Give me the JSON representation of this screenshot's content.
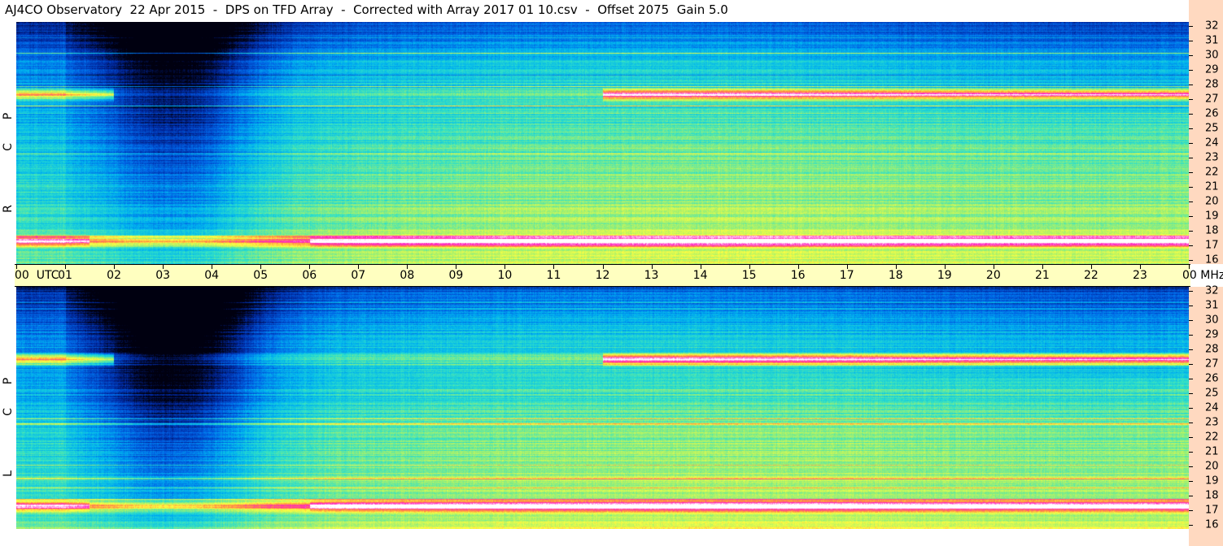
{
  "header": {
    "title": "AJ4CO Observatory  22 Apr 2015  -  DPS on TFD Array  -  Corrected with Array 2017 01 10.csv  -  Offset 2075  Gain 5.0"
  },
  "panels": [
    {
      "id": "top",
      "polarization": [
        "R",
        "C",
        "P"
      ]
    },
    {
      "id": "bottom",
      "polarization": [
        "L",
        "C",
        "P"
      ]
    }
  ],
  "time_axis": {
    "labels": [
      "00  UTC",
      "01",
      "02",
      "03",
      "04",
      "05",
      "06",
      "07",
      "08",
      "09",
      "10",
      "11",
      "12",
      "13",
      "14",
      "15",
      "16",
      "17",
      "18",
      "19",
      "20",
      "21",
      "22",
      "23",
      "00 MHz"
    ]
  },
  "colors": {
    "axis_bg": "#ffffc0",
    "freq_bg": "#ffd9c0"
  },
  "chart_data": {
    "type": "heatmap",
    "title": "AJ4CO Observatory  22 Apr 2015  -  DPS on TFD Array  -  Corrected with Array 2017 01 10.csv  -  Offset 2075  Gain 5.0",
    "x_unit": "UTC hour",
    "x_range": [
      0,
      24
    ],
    "x_ticks": [
      "00",
      "01",
      "02",
      "03",
      "04",
      "05",
      "06",
      "07",
      "08",
      "09",
      "10",
      "11",
      "12",
      "13",
      "14",
      "15",
      "16",
      "17",
      "18",
      "19",
      "20",
      "21",
      "22",
      "23",
      "00"
    ],
    "y_unit": "MHz",
    "y_range": [
      16,
      32
    ],
    "y_ticks": [
      32,
      31,
      30,
      29,
      28,
      27,
      26,
      25,
      24,
      23,
      22,
      21,
      20,
      19,
      18,
      17,
      16
    ],
    "panels": [
      "RCP",
      "LCP"
    ],
    "colormap": [
      "#000010",
      "#0028a0",
      "#0064e6",
      "#00b4f0",
      "#30e0c8",
      "#a0f070",
      "#ffff40",
      "#ff9040",
      "#ff20c0",
      "#ffffff"
    ],
    "strong_bands_mhz": [
      17.5,
      27.2
    ],
    "quiet_hours": [
      1.5,
      5.5
    ]
  }
}
